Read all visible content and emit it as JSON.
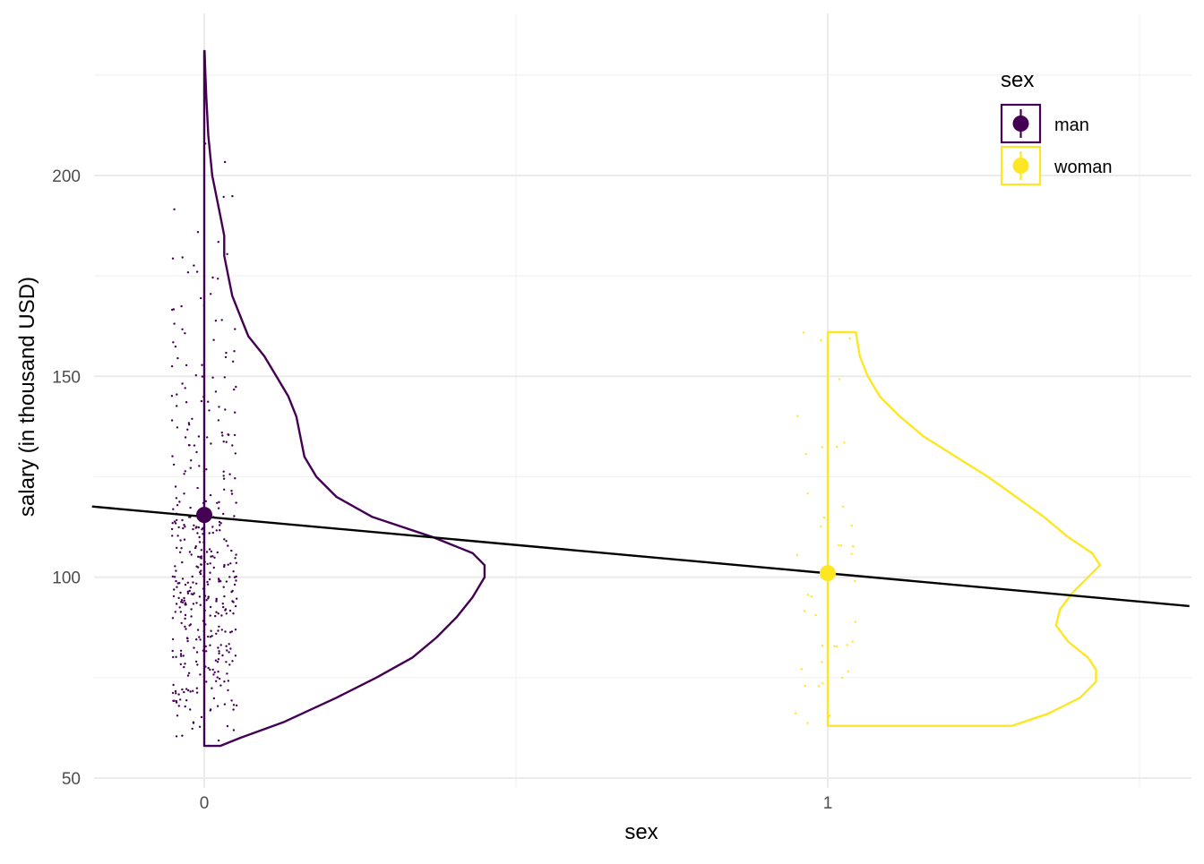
{
  "chart_data": {
    "type": "scatter",
    "subtype": "raincloud (jittered points + half violin + mean point + regression line)",
    "xlabel": "sex",
    "ylabel": "salary (in thousand USD)",
    "x_ticks": [
      "0",
      "1"
    ],
    "y_ticks": [
      50,
      100,
      150,
      200
    ],
    "xlim": [
      -0.18,
      1.58
    ],
    "ylim": [
      48,
      235
    ],
    "grid": true,
    "legend": {
      "title": "sex",
      "position": "top-right",
      "entries": [
        {
          "label": "man",
          "color": "#440154"
        },
        {
          "label": "woman",
          "color": "#FDE725"
        }
      ]
    },
    "groups": [
      {
        "name": "man",
        "x": 0,
        "color": "#440154",
        "mean": 115.5,
        "min": 58,
        "max": 231,
        "n_points": 420,
        "density": [
          [
            58,
            0.04
          ],
          [
            60,
            0.09
          ],
          [
            64,
            0.2
          ],
          [
            70,
            0.33
          ],
          [
            75,
            0.43
          ],
          [
            80,
            0.52
          ],
          [
            85,
            0.58
          ],
          [
            90,
            0.63
          ],
          [
            95,
            0.67
          ],
          [
            100,
            0.7
          ],
          [
            103,
            0.7
          ],
          [
            106,
            0.67
          ],
          [
            110,
            0.57
          ],
          [
            115,
            0.42
          ],
          [
            120,
            0.33
          ],
          [
            125,
            0.28
          ],
          [
            130,
            0.25
          ],
          [
            135,
            0.24
          ],
          [
            140,
            0.23
          ],
          [
            145,
            0.21
          ],
          [
            150,
            0.18
          ],
          [
            155,
            0.15
          ],
          [
            160,
            0.11
          ],
          [
            165,
            0.09
          ],
          [
            170,
            0.07
          ],
          [
            175,
            0.06
          ],
          [
            180,
            0.05
          ],
          [
            185,
            0.05
          ],
          [
            190,
            0.04
          ],
          [
            195,
            0.03
          ],
          [
            200,
            0.02
          ],
          [
            210,
            0.01
          ],
          [
            220,
            0.005
          ],
          [
            225,
            0.003
          ],
          [
            231,
            0.001
          ]
        ]
      },
      {
        "name": "woman",
        "x": 1,
        "color": "#FDE725",
        "mean": 101,
        "min": 63,
        "max": 161,
        "n_points": 40,
        "density": [
          [
            63,
            0.46
          ],
          [
            66,
            0.55
          ],
          [
            70,
            0.63
          ],
          [
            74,
            0.67
          ],
          [
            77,
            0.67
          ],
          [
            80,
            0.65
          ],
          [
            84,
            0.6
          ],
          [
            88,
            0.57
          ],
          [
            92,
            0.58
          ],
          [
            96,
            0.61
          ],
          [
            100,
            0.65
          ],
          [
            103,
            0.68
          ],
          [
            106,
            0.66
          ],
          [
            110,
            0.6
          ],
          [
            115,
            0.54
          ],
          [
            120,
            0.47
          ],
          [
            125,
            0.4
          ],
          [
            130,
            0.32
          ],
          [
            135,
            0.24
          ],
          [
            140,
            0.18
          ],
          [
            145,
            0.13
          ],
          [
            150,
            0.1
          ],
          [
            155,
            0.08
          ],
          [
            161,
            0.07
          ]
        ]
      }
    ],
    "regression_line": {
      "x": [
        -0.18,
        1.58
      ],
      "y": [
        117.6,
        92.8
      ]
    }
  }
}
